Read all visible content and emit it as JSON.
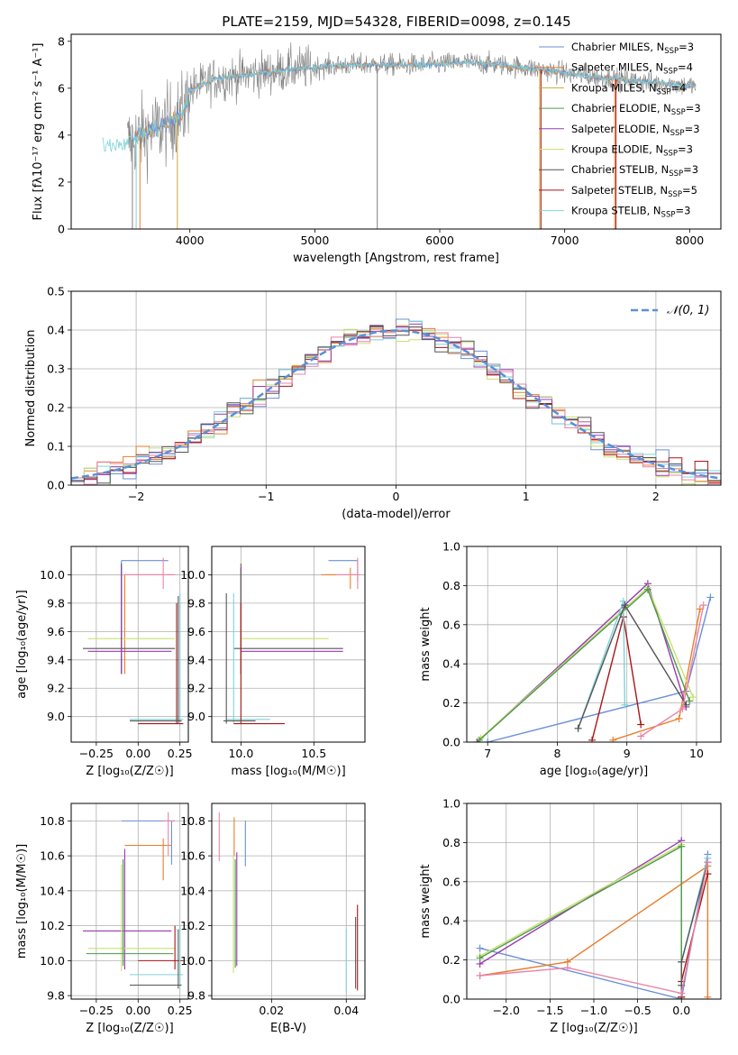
{
  "title": "PLATE=2159, MJD=54328, FIBERID=0098, z=0.145",
  "colors": {
    "Chabrier MILES": "#6b8fd6",
    "Salpeter MILES": "#e87e2c",
    "Kroupa MILES": "#ccaa33",
    "Chabrier ELODIE": "#4e9a4e",
    "Salpeter ELODIE": "#9a3ab0",
    "Kroupa ELODIE": "#c8e070",
    "Chabrier STELIB": "#555555",
    "Salpeter STELIB": "#a81616",
    "Kroupa STELIB": "#7fd3d8",
    "pink": "#e884a8",
    "data": "#808080",
    "normal": "#5b8fd9"
  },
  "chart_data": [
    {
      "id": "spectrum",
      "type": "line",
      "title": "PLATE=2159, MJD=54328, FIBERID=0098, z=0.145",
      "xlabel": "wavelength [Angstrom, rest frame]",
      "ylabel": "Flux [fλ10⁻¹⁷ erg cm⁻² s⁻¹ A⁻¹]",
      "xlim": [
        3050,
        8250
      ],
      "ylim": [
        0,
        8.3
      ],
      "xticks": [
        4000,
        5000,
        6000,
        7000,
        8000
      ],
      "yticks": [
        0,
        2,
        4,
        6,
        8
      ],
      "grid": false,
      "legend": "top-right",
      "legend_entries": [
        {
          "label": "Chabrier MILES, N",
          "sub": "SSP",
          "suffix": "=3",
          "color_key": "Chabrier MILES"
        },
        {
          "label": "Salpeter MILES, N",
          "sub": "SSP",
          "suffix": "=4",
          "color_key": "Salpeter MILES"
        },
        {
          "label": "Kroupa MILES, N",
          "sub": "SSP",
          "suffix": "=4",
          "color_key": "Kroupa MILES"
        },
        {
          "label": "Chabrier ELODIE, N",
          "sub": "SSP",
          "suffix": "=3",
          "color_key": "Chabrier ELODIE"
        },
        {
          "label": "Salpeter ELODIE, N",
          "sub": "SSP",
          "suffix": "=3",
          "color_key": "Salpeter ELODIE"
        },
        {
          "label": "Kroupa ELODIE, N",
          "sub": "SSP",
          "suffix": "=3",
          "color_key": "Kroupa ELODIE"
        },
        {
          "label": "Chabrier STELIB, N",
          "sub": "SSP",
          "suffix": "=3",
          "color_key": "Chabrier STELIB"
        },
        {
          "label": "Salpeter STELIB, N",
          "sub": "SSP",
          "suffix": "=5",
          "color_key": "Salpeter STELIB"
        },
        {
          "label": "Kroupa STELIB, N",
          "sub": "SSP",
          "suffix": "=3",
          "color_key": "Kroupa STELIB"
        }
      ],
      "continuum": {
        "x": [
          3300,
          3500,
          3600,
          3800,
          3950,
          4000,
          4200,
          4500,
          4800,
          5000,
          5300,
          5600,
          5900,
          6200,
          6500,
          6800,
          7200,
          7600,
          8000
        ],
        "y": [
          3.6,
          3.7,
          4.0,
          4.4,
          5.0,
          5.9,
          6.4,
          6.6,
          6.8,
          6.9,
          7.0,
          7.0,
          7.0,
          7.1,
          7.0,
          6.8,
          6.5,
          6.3,
          6.1
        ]
      },
      "drop_lines": [
        {
          "x": 3540,
          "color_key": "data"
        },
        {
          "x": 3570,
          "color_key": "Kroupa STELIB"
        },
        {
          "x": 3600,
          "color_key": "Salpeter MILES"
        },
        {
          "x": 3900,
          "color_key": "Kroupa MILES"
        },
        {
          "x": 5500,
          "color_key": "data"
        },
        {
          "x": 6800,
          "color_key": "Kroupa MILES"
        },
        {
          "x": 6810,
          "color_key": "Salpeter STELIB"
        },
        {
          "x": 7400,
          "color_key": "Salpeter MILES"
        },
        {
          "x": 7410,
          "color_key": "Salpeter STELIB"
        }
      ]
    },
    {
      "id": "residuals",
      "type": "line",
      "xlabel": "(data-model)/error",
      "ylabel": "Normed distribution",
      "xlim": [
        -2.5,
        2.5
      ],
      "ylim": [
        0,
        0.5
      ],
      "xticks": [
        -2,
        -1,
        0,
        1,
        2
      ],
      "xtick_labels": [
        "−2",
        "−1",
        "0",
        "1",
        "2"
      ],
      "yticks": [
        0.0,
        0.1,
        0.2,
        0.3,
        0.4,
        0.5
      ],
      "ytick_labels": [
        "0.0",
        "0.1",
        "0.2",
        "0.3",
        "0.4",
        "0.5"
      ],
      "grid": true,
      "legend": "top-right",
      "legend_label": "𝒩(0, 1)",
      "histogram_bins": 50,
      "hist_colors": [
        "Chabrier MILES",
        "Salpeter MILES",
        "Kroupa ELODIE",
        "Salpeter ELODIE",
        "Salpeter STELIB",
        "Kroupa STELIB",
        "pink",
        "Chabrier STELIB"
      ]
    },
    {
      "id": "age-vs-Z",
      "type": "scatter",
      "xlabel": "Z [log₁₀(Z/Z☉)]",
      "ylabel": "age  [log₁₀(age/yr)]",
      "xlim": [
        -0.4,
        0.3
      ],
      "ylim": [
        8.82,
        10.2
      ],
      "xticks": [
        -0.25,
        0.0,
        0.25
      ],
      "xtick_labels": [
        "−0.25",
        "0.00",
        "0.25"
      ],
      "yticks": [
        9.0,
        9.2,
        9.4,
        9.6,
        9.8,
        10.0
      ],
      "ytick_labels": [
        "9.0",
        "9.2",
        "9.4",
        "9.6",
        "9.8",
        "10.0"
      ],
      "grid": true,
      "points": [
        {
          "x": -0.1,
          "y": 10.1,
          "x0": -0.1,
          "x1": 0.18,
          "y0": 9.3,
          "y1": 10.1,
          "color_key": "Chabrier MILES"
        },
        {
          "x": -0.08,
          "y": 10.0,
          "x0": -0.08,
          "x1": 0.22,
          "y0": 9.3,
          "y1": 10.0,
          "color_key": "Salpeter MILES"
        },
        {
          "x": 0.15,
          "y": 10.0,
          "x0": -0.08,
          "x1": 0.22,
          "y0": 9.9,
          "y1": 10.12,
          "color_key": "pink"
        },
        {
          "x": -0.1,
          "y": 9.55,
          "x0": -0.3,
          "x1": 0.22,
          "y0": 9.3,
          "y1": 10.05,
          "color_key": "Kroupa ELODIE"
        },
        {
          "x": -0.1,
          "y": 9.48,
          "x0": -0.33,
          "x1": 0.22,
          "y0": 9.3,
          "y1": 10.08,
          "color_key": "Chabrier STELIB"
        },
        {
          "x": -0.1,
          "y": 9.46,
          "x0": -0.3,
          "x1": 0.2,
          "y0": 9.3,
          "y1": 10.05,
          "color_key": "Salpeter ELODIE"
        },
        {
          "x": 0.25,
          "y": 8.98,
          "x0": -0.05,
          "x1": 0.27,
          "y0": 8.95,
          "y1": 9.87,
          "color_key": "Kroupa STELIB"
        },
        {
          "x": 0.23,
          "y": 8.95,
          "x0": 0.0,
          "x1": 0.27,
          "y0": 8.95,
          "y1": 9.8,
          "color_key": "Salpeter STELIB"
        },
        {
          "x": 0.24,
          "y": 8.97,
          "x0": -0.05,
          "x1": 0.26,
          "y0": 8.95,
          "y1": 9.85,
          "color_key": "Chabrier STELIB"
        }
      ]
    },
    {
      "id": "age-vs-mass",
      "type": "scatter",
      "xlabel": "mass [log₁₀(M/M☉)]",
      "xlim": [
        9.8,
        10.85
      ],
      "ylim": [
        8.82,
        10.2
      ],
      "xticks": [
        10.0,
        10.5
      ],
      "xtick_labels": [
        "10.0",
        "10.5"
      ],
      "yticks": [
        9.0,
        9.2,
        9.4,
        9.6,
        9.8,
        10.0
      ],
      "ytick_labels": [
        "9.0",
        "9.2",
        "9.4",
        "9.6",
        "9.8",
        "10.0"
      ],
      "grid": true,
      "points": [
        {
          "x": 10.8,
          "y": 10.1,
          "x0": 10.6,
          "x1": 10.8,
          "y0": 9.95,
          "y1": 10.1,
          "color_key": "Chabrier MILES"
        },
        {
          "x": 10.75,
          "y": 10.0,
          "x0": 10.55,
          "x1": 10.8,
          "y0": 9.9,
          "y1": 10.05,
          "color_key": "Salpeter MILES"
        },
        {
          "x": 10.8,
          "y": 10.0,
          "x0": 10.65,
          "x1": 10.82,
          "y0": 9.9,
          "y1": 10.12,
          "color_key": "pink"
        },
        {
          "x": 10.0,
          "y": 9.55,
          "x0": 10.0,
          "x1": 10.6,
          "y0": 9.3,
          "y1": 10.1,
          "color_key": "Kroupa ELODIE"
        },
        {
          "x": 10.0,
          "y": 9.46,
          "x0": 10.0,
          "x1": 10.7,
          "y0": 9.3,
          "y1": 10.08,
          "color_key": "Salpeter ELODIE"
        },
        {
          "x": 10.0,
          "y": 9.48,
          "x0": 9.95,
          "x1": 10.7,
          "y0": 9.3,
          "y1": 10.05,
          "color_key": "Chabrier STELIB"
        },
        {
          "x": 9.95,
          "y": 8.98,
          "x0": 9.9,
          "x1": 10.2,
          "y0": 8.95,
          "y1": 9.87,
          "color_key": "Kroupa STELIB"
        },
        {
          "x": 10.0,
          "y": 8.95,
          "x0": 9.95,
          "x1": 10.3,
          "y0": 8.95,
          "y1": 9.8,
          "color_key": "Salpeter STELIB"
        },
        {
          "x": 9.9,
          "y": 8.97,
          "x0": 9.88,
          "x1": 10.1,
          "y0": 8.95,
          "y1": 9.87,
          "color_key": "Chabrier STELIB"
        }
      ]
    },
    {
      "id": "weight-vs-age",
      "type": "line",
      "xlabel": "age  [log₁₀(age/yr)]",
      "ylabel": "mass weight",
      "xlim": [
        6.7,
        10.35
      ],
      "ylim": [
        0,
        1
      ],
      "xticks": [
        7,
        8,
        9,
        10
      ],
      "xtick_labels": [
        "7",
        "8",
        "9",
        "10"
      ],
      "yticks": [
        0.0,
        0.2,
        0.4,
        0.6,
        0.8,
        1.0
      ],
      "ytick_labels": [
        "0.0",
        "0.2",
        "0.4",
        "0.6",
        "0.8",
        "1.0"
      ],
      "grid": true,
      "series": [
        {
          "color_key": "Chabrier MILES",
          "x": [
            7.0,
            9.85,
            10.2
          ],
          "y": [
            0.0,
            0.26,
            0.74
          ]
        },
        {
          "color_key": "Salpeter MILES",
          "x": [
            8.8,
            9.75,
            10.05
          ],
          "y": [
            0.01,
            0.12,
            0.68
          ]
        },
        {
          "color_key": "Salpeter ELODIE",
          "x": [
            6.85,
            9.3,
            9.85
          ],
          "y": [
            0.0,
            0.81,
            0.18
          ]
        },
        {
          "color_key": "Kroupa ELODIE",
          "x": [
            6.9,
            9.3,
            9.95
          ],
          "y": [
            0.02,
            0.79,
            0.23
          ]
        },
        {
          "color_key": "Chabrier ELODIE",
          "x": [
            6.88,
            9.3,
            9.9
          ],
          "y": [
            0.01,
            0.78,
            0.21
          ]
        },
        {
          "color_key": "Salpeter STELIB",
          "x": [
            8.5,
            8.95,
            9.2
          ],
          "y": [
            0.01,
            0.64,
            0.09
          ]
        },
        {
          "color_key": "Kroupa STELIB",
          "x": [
            8.3,
            8.95,
            8.97
          ],
          "y": [
            0.07,
            0.72,
            0.19
          ]
        },
        {
          "color_key": "Chabrier STELIB",
          "x": [
            8.3,
            8.97,
            9.85
          ],
          "y": [
            0.07,
            0.7,
            0.19
          ]
        },
        {
          "color_key": "pink",
          "x": [
            9.2,
            9.8,
            10.1
          ],
          "y": [
            0.03,
            0.17,
            0.7
          ]
        }
      ]
    },
    {
      "id": "mass-vs-Z",
      "type": "scatter",
      "xlabel": "Z [log₁₀(Z/Z☉)]",
      "ylabel": "mass [log₁₀(M/M☉)]",
      "xlim": [
        -0.4,
        0.3
      ],
      "ylim": [
        9.78,
        10.9
      ],
      "xticks": [
        -0.25,
        0.0,
        0.25
      ],
      "xtick_labels": [
        "−0.25",
        "0.00",
        "0.25"
      ],
      "yticks": [
        9.8,
        10.0,
        10.2,
        10.4,
        10.6,
        10.8
      ],
      "ytick_labels": [
        "9.8",
        "10.0",
        "10.2",
        "10.4",
        "10.6",
        "10.8"
      ],
      "grid": true,
      "points": [
        {
          "x": 0.2,
          "y": 10.8,
          "x0": -0.1,
          "x1": 0.22,
          "y0": 10.55,
          "y1": 10.8,
          "color_key": "Chabrier MILES"
        },
        {
          "x": 0.15,
          "y": 10.66,
          "x0": -0.08,
          "x1": 0.2,
          "y0": 10.46,
          "y1": 10.7,
          "color_key": "Salpeter MILES"
        },
        {
          "x": 0.18,
          "y": 10.8,
          "x0": 0.15,
          "x1": 0.22,
          "y0": 10.6,
          "y1": 10.85,
          "color_key": "pink"
        },
        {
          "x": -0.08,
          "y": 10.17,
          "x0": -0.33,
          "x1": 0.2,
          "y0": 9.95,
          "y1": 10.64,
          "color_key": "Salpeter ELODIE"
        },
        {
          "x": -0.1,
          "y": 10.07,
          "x0": -0.3,
          "x1": 0.22,
          "y0": 9.94,
          "y1": 10.55,
          "color_key": "Kroupa ELODIE"
        },
        {
          "x": -0.09,
          "y": 10.04,
          "x0": -0.31,
          "x1": 0.21,
          "y0": 9.97,
          "y1": 10.58,
          "color_key": "Chabrier ELODIE"
        },
        {
          "x": 0.22,
          "y": 10.0,
          "x0": 0.0,
          "x1": 0.27,
          "y0": 9.95,
          "y1": 10.2,
          "color_key": "Salpeter STELIB"
        },
        {
          "x": 0.25,
          "y": 9.92,
          "x0": -0.05,
          "x1": 0.27,
          "y0": 9.85,
          "y1": 10.2,
          "color_key": "Kroupa STELIB"
        },
        {
          "x": 0.24,
          "y": 9.86,
          "x0": -0.05,
          "x1": 0.26,
          "y0": 9.84,
          "y1": 10.18,
          "color_key": "Chabrier STELIB"
        }
      ]
    },
    {
      "id": "mass-vs-ebv",
      "type": "scatter",
      "xlabel": "E(B-V)",
      "xlim": [
        0.004,
        0.045
      ],
      "ylim": [
        9.78,
        10.9
      ],
      "xticks": [
        0.02,
        0.04
      ],
      "xtick_labels": [
        "0.02",
        "0.04"
      ],
      "yticks": [
        9.8,
        10.0,
        10.2,
        10.4,
        10.6,
        10.8
      ],
      "ytick_labels": [
        "9.8",
        "10.0",
        "10.2",
        "10.4",
        "10.6",
        "10.8"
      ],
      "grid": true,
      "segments": [
        {
          "x": 0.006,
          "y0": 10.57,
          "y1": 10.85,
          "color_key": "pink"
        },
        {
          "x": 0.01,
          "y0": 10.6,
          "y1": 10.82,
          "color_key": "Salpeter MILES"
        },
        {
          "x": 0.013,
          "y0": 10.54,
          "y1": 10.8,
          "color_key": "Chabrier MILES"
        },
        {
          "x": 0.0098,
          "y0": 9.93,
          "y1": 10.6,
          "color_key": "Kroupa ELODIE"
        },
        {
          "x": 0.0103,
          "y0": 9.96,
          "y1": 10.58,
          "color_key": "Chabrier ELODIE"
        },
        {
          "x": 0.0107,
          "y0": 9.97,
          "y1": 10.62,
          "color_key": "Salpeter ELODIE"
        },
        {
          "x": 0.04,
          "y0": 9.82,
          "y1": 10.18,
          "color_key": "Kroupa STELIB"
        },
        {
          "x": 0.043,
          "y0": 9.83,
          "y1": 10.32,
          "color_key": "Salpeter STELIB"
        },
        {
          "x": 0.0425,
          "y0": 9.84,
          "y1": 10.25,
          "color_key": "Chabrier STELIB"
        }
      ]
    },
    {
      "id": "weight-vs-Z",
      "type": "line",
      "xlabel": "Z [log₁₀(Z/Z☉)]",
      "ylabel": "mass weight",
      "xlim": [
        -2.45,
        0.45
      ],
      "ylim": [
        0,
        1
      ],
      "xticks": [
        -2.0,
        -1.5,
        -1.0,
        -0.5,
        0.0
      ],
      "xtick_labels": [
        "−2.0",
        "−1.5",
        "−1.0",
        "−0.5",
        "0.0"
      ],
      "yticks": [
        0.0,
        0.2,
        0.4,
        0.6,
        0.8,
        1.0
      ],
      "ytick_labels": [
        "0.0",
        "0.2",
        "0.4",
        "0.6",
        "0.8",
        "1.0"
      ],
      "grid": true,
      "series": [
        {
          "color_key": "Chabrier MILES",
          "x": [
            -2.3,
            0.0,
            0.3
          ],
          "y": [
            0.26,
            0.0,
            0.74
          ]
        },
        {
          "color_key": "Salpeter MILES",
          "x": [
            -2.3,
            -1.3,
            0.3,
            0.3
          ],
          "y": [
            0.12,
            0.19,
            0.68,
            0.01
          ]
        },
        {
          "color_key": "Salpeter ELODIE",
          "x": [
            -2.3,
            0.0,
            0.0
          ],
          "y": [
            0.18,
            0.81,
            0.01
          ]
        },
        {
          "color_key": "Kroupa ELODIE",
          "x": [
            -2.3,
            0.0,
            0.0
          ],
          "y": [
            0.22,
            0.79,
            0.0
          ]
        },
        {
          "color_key": "Chabrier ELODIE",
          "x": [
            -2.3,
            0.0,
            0.0
          ],
          "y": [
            0.21,
            0.78,
            0.01
          ]
        },
        {
          "color_key": "Salpeter STELIB",
          "x": [
            0.0,
            0.0,
            0.3
          ],
          "y": [
            0.01,
            0.09,
            0.64
          ]
        },
        {
          "color_key": "Kroupa STELIB",
          "x": [
            0.0,
            0.0,
            0.3
          ],
          "y": [
            0.07,
            0.19,
            0.72
          ]
        },
        {
          "color_key": "Chabrier STELIB",
          "x": [
            0.0,
            0.0,
            0.3
          ],
          "y": [
            0.07,
            0.19,
            0.7
          ]
        },
        {
          "color_key": "pink",
          "x": [
            -2.3,
            -1.3,
            0.0,
            0.3
          ],
          "y": [
            0.12,
            0.16,
            0.03,
            0.7
          ]
        }
      ]
    }
  ]
}
